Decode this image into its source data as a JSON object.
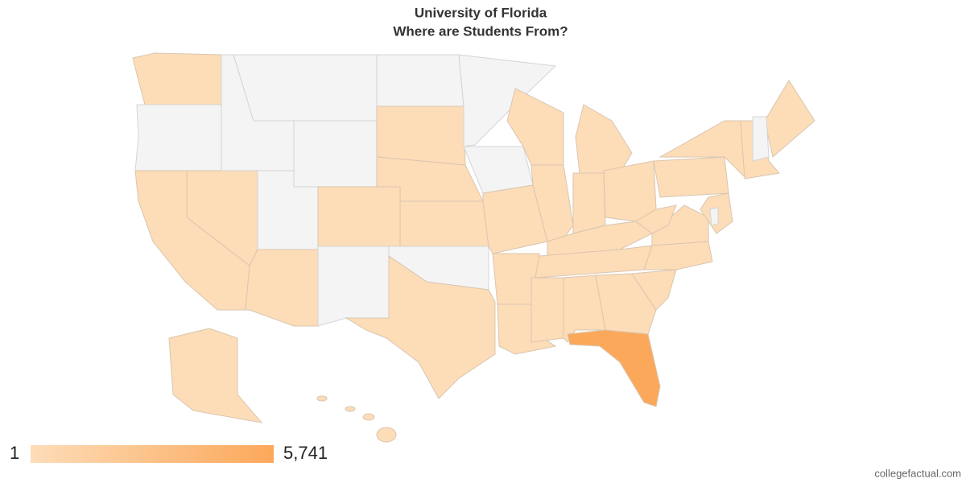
{
  "chart_data": {
    "type": "choropleth",
    "title": "University of Florida",
    "subtitle": "Where are Students From?",
    "legend": {
      "min": 1,
      "max": {
        "value": 5741,
        "label": "5,741"
      },
      "min_color": "#fddcb8",
      "max_color": "#fca85a"
    },
    "no_data_color": "#f4f4f4",
    "credit": "collegefactual.com"
  }
}
